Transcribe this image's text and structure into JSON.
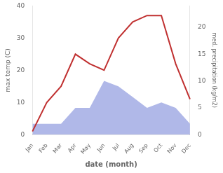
{
  "chart_data": {
    "type": "line",
    "xlabel": "date (month)",
    "ylabel": "max temp (C)",
    "y2label": "med. precipitation (kg/m2)",
    "categories": [
      "Jan",
      "Feb",
      "Mar",
      "Apr",
      "May",
      "Jun",
      "Jul",
      "Aug",
      "Sep",
      "Oct",
      "Nov",
      "Dec"
    ],
    "series": [
      {
        "type": "line",
        "color": "#c03030",
        "values": [
          1,
          10,
          15,
          25,
          22,
          20,
          30,
          35,
          37,
          37,
          22,
          11
        ]
      },
      {
        "type": "area",
        "color": "#b0b8e8",
        "axis": "y2",
        "values": [
          2,
          2,
          2,
          5,
          5,
          10,
          9,
          7,
          5,
          6,
          5,
          2
        ]
      }
    ],
    "ylim": [
      0,
      40
    ],
    "yticks": [
      0,
      10,
      20,
      30,
      40
    ],
    "y2lim": [
      0,
      24
    ],
    "y2ticks": [
      0,
      5,
      10,
      15,
      20
    ],
    "grid": false
  }
}
